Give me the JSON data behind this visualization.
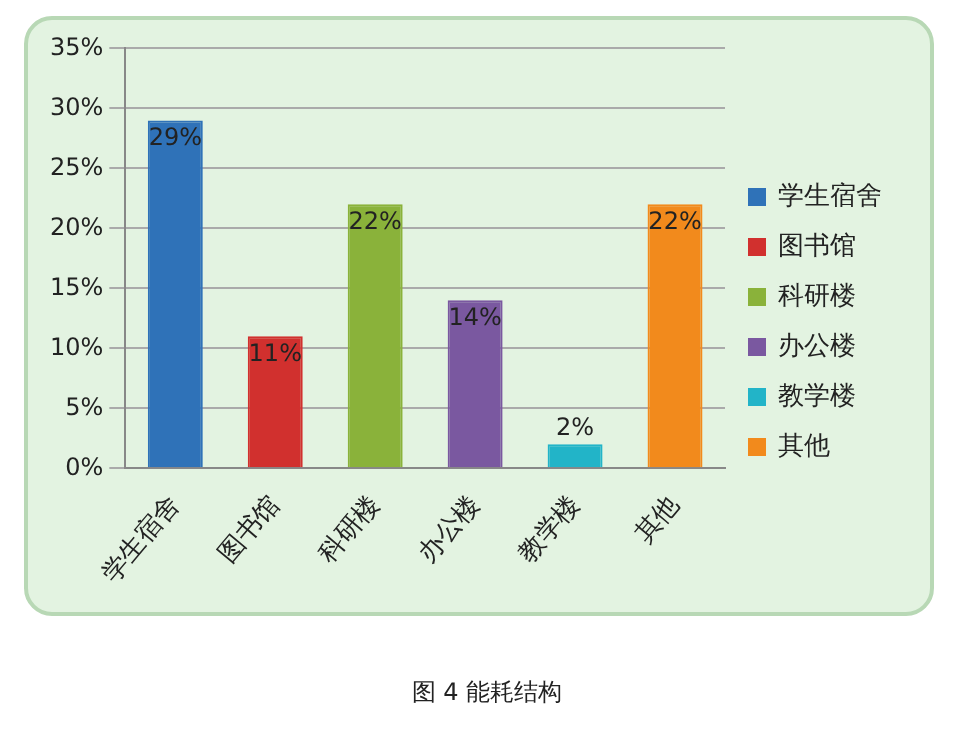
{
  "chart_data": {
    "type": "bar",
    "categories": [
      "学生宿舍",
      "图书馆",
      "科研楼",
      "办公楼",
      "教学楼",
      "其他"
    ],
    "series": [
      {
        "name": "学生宿舍",
        "color": "#2f72b8",
        "values": [
          29,
          null,
          null,
          null,
          null,
          null
        ],
        "value_labels": [
          "29%",
          null,
          null,
          null,
          null,
          null
        ]
      },
      {
        "name": "图书馆",
        "color": "#d1302e",
        "values": [
          null,
          11,
          null,
          null,
          null,
          null
        ],
        "value_labels": [
          null,
          "11%",
          null,
          null,
          null,
          null
        ]
      },
      {
        "name": "科研楼",
        "color": "#8ab23a",
        "values": [
          null,
          null,
          22,
          null,
          null,
          null
        ],
        "value_labels": [
          null,
          null,
          "22%",
          null,
          null,
          null
        ]
      },
      {
        "name": "办公楼",
        "color": "#7a58a0",
        "values": [
          null,
          null,
          null,
          14,
          null,
          null
        ],
        "value_labels": [
          null,
          null,
          null,
          "14%",
          null,
          null
        ]
      },
      {
        "name": "教学楼",
        "color": "#22b4c8",
        "values": [
          null,
          null,
          null,
          null,
          2,
          null
        ],
        "value_labels": [
          null,
          null,
          null,
          null,
          "2%",
          null
        ]
      },
      {
        "name": "其他",
        "color": "#f28a1c",
        "values": [
          null,
          null,
          null,
          null,
          null,
          22
        ],
        "value_labels": [
          null,
          null,
          null,
          null,
          null,
          "22%"
        ]
      }
    ],
    "ylim": [
      0,
      35
    ],
    "yticks": [
      {
        "value": 0,
        "label": "0%"
      },
      {
        "value": 5,
        "label": "5%"
      },
      {
        "value": 10,
        "label": "10%"
      },
      {
        "value": 15,
        "label": "15%"
      },
      {
        "value": 20,
        "label": "20%"
      },
      {
        "value": 25,
        "label": "25%"
      },
      {
        "value": 30,
        "label": "30%"
      },
      {
        "value": 35,
        "label": "35%"
      }
    ],
    "grid": "y",
    "legend": "right",
    "annotations": [
      "图 4 能耗结构"
    ]
  }
}
